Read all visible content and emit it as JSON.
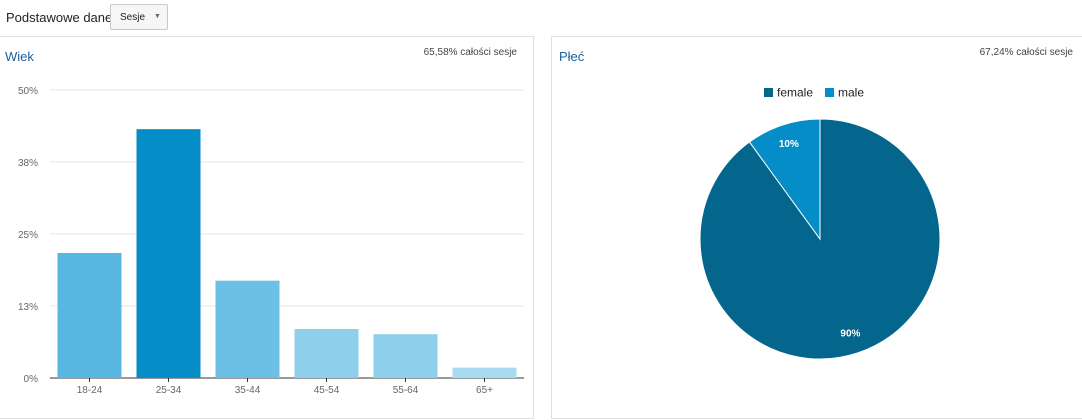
{
  "toolbar": {
    "label": "Podstawowe dane:",
    "metric_selected": "Sesje",
    "dropdown_icon": "chevron-down-icon"
  },
  "age_panel": {
    "title": "Wiek",
    "total_note": "65,58% całości sesje"
  },
  "gender_panel": {
    "title": "Płeć",
    "total_note": "67,24% całości sesje"
  },
  "chart_data": [
    {
      "type": "bar",
      "title": "Wiek",
      "categories": [
        "18-24",
        "25-34",
        "35-44",
        "45-54",
        "55-64",
        "65+"
      ],
      "values": [
        21.7,
        43.2,
        16.9,
        8.5,
        7.6,
        1.8
      ],
      "colors": [
        "#58b7e0",
        "#058dc7",
        "#6cc0e5",
        "#8ecfea",
        "#8ecfea",
        "#a8dbf1"
      ],
      "ylim": [
        0,
        50
      ],
      "y_ticks": [
        0,
        12.5,
        25,
        37.5,
        50
      ],
      "y_tick_labels": [
        "0%",
        "13%",
        "25%",
        "38%",
        "50%"
      ],
      "grid": true
    },
    {
      "type": "pie",
      "title": "Płeć",
      "labels": [
        "female",
        "male"
      ],
      "values": [
        90,
        10
      ],
      "slice_labels": [
        "90%",
        "10%"
      ],
      "colors": [
        "#05668d",
        "#058dc7"
      ],
      "legend": "top"
    }
  ]
}
